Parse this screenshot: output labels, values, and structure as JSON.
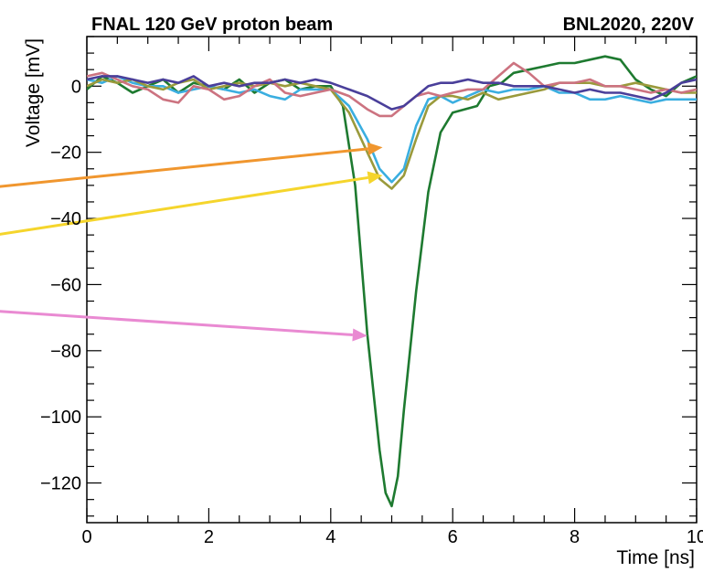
{
  "chart_data": {
    "type": "line",
    "title_left": "FNAL 120 GeV proton beam",
    "title_right": "BNL2020, 220V",
    "xlabel": "Time [ns]",
    "ylabel": "Voltage [mV]",
    "xlim": [
      0,
      10
    ],
    "ylim": [
      -132,
      15
    ],
    "xticks": [
      0,
      2,
      4,
      6,
      8,
      10
    ],
    "xtick_labels": [
      "0",
      "2",
      "4",
      "6",
      "8",
      "10"
    ],
    "yticks": [
      0,
      -20,
      -40,
      -60,
      -80,
      -100,
      -120
    ],
    "ytick_labels": [
      "0",
      "−20",
      "−40",
      "−60",
      "−80",
      "−100",
      "−120"
    ],
    "grid": false,
    "series": [
      {
        "color": "#1e7a30",
        "x": [
          0,
          0.25,
          0.5,
          0.75,
          1,
          1.25,
          1.5,
          1.75,
          2,
          2.25,
          2.5,
          2.75,
          3,
          3.25,
          3.5,
          3.75,
          4,
          4.2,
          4.4,
          4.6,
          4.8,
          4.9,
          5.0,
          5.1,
          5.2,
          5.4,
          5.6,
          5.8,
          6.0,
          6.2,
          6.4,
          6.6,
          6.8,
          7.0,
          7.25,
          7.5,
          7.75,
          8,
          8.25,
          8.5,
          8.75,
          9,
          9.25,
          9.5,
          9.75,
          10
        ],
        "y": [
          -1,
          3,
          1,
          -2,
          0,
          2,
          -2,
          1,
          0,
          -1,
          2,
          -2,
          1,
          2,
          -1,
          0,
          0,
          -6,
          -30,
          -75,
          -110,
          -123,
          -127,
          -118,
          -98,
          -62,
          -32,
          -14,
          -8,
          -7,
          -6,
          0,
          1,
          4,
          5,
          6,
          7,
          7,
          8,
          9,
          8,
          2,
          -1,
          -3,
          1,
          3
        ]
      },
      {
        "color": "#3aaee0",
        "x": [
          0,
          0.25,
          0.5,
          0.75,
          1,
          1.25,
          1.5,
          1.75,
          2,
          2.25,
          2.5,
          2.75,
          3,
          3.25,
          3.5,
          3.75,
          4,
          4.3,
          4.6,
          4.8,
          5.0,
          5.2,
          5.4,
          5.6,
          5.8,
          6.0,
          6.25,
          6.5,
          6.75,
          7,
          7.25,
          7.5,
          7.75,
          8,
          8.25,
          8.5,
          8.75,
          9,
          9.25,
          9.5,
          9.75,
          10
        ],
        "y": [
          2,
          1,
          3,
          1,
          0,
          0,
          -2,
          -1,
          0,
          -1,
          -2,
          -1,
          -3,
          -4,
          -1,
          -1,
          -1,
          -6,
          -16,
          -25,
          -29,
          -25,
          -12,
          -4,
          -3,
          -5,
          -3,
          -1,
          -2,
          -1,
          -1,
          0,
          -2,
          -2,
          -4,
          -4,
          -3,
          -4,
          -5,
          -4,
          -4,
          -4
        ]
      },
      {
        "color": "#9a9a3c",
        "x": [
          0,
          0.25,
          0.5,
          0.75,
          1,
          1.25,
          1.5,
          1.75,
          2,
          2.25,
          2.5,
          2.75,
          3,
          3.25,
          3.5,
          3.75,
          4,
          4.3,
          4.6,
          4.8,
          5.0,
          5.2,
          5.4,
          5.6,
          5.8,
          6.0,
          6.25,
          6.5,
          6.75,
          7,
          7.25,
          7.5,
          7.75,
          8,
          8.25,
          8.5,
          8.75,
          9,
          9.25,
          9.5,
          9.75,
          10
        ],
        "y": [
          0,
          2,
          1,
          2,
          0,
          -1,
          1,
          2,
          -1,
          0,
          1,
          0,
          1,
          0,
          1,
          0,
          -1,
          -8,
          -20,
          -28,
          -31,
          -27,
          -16,
          -6,
          -3,
          -3,
          -4,
          -2,
          -4,
          -3,
          -2,
          -1,
          1,
          1,
          1,
          0,
          0,
          1,
          0,
          -1,
          -2,
          -2
        ]
      },
      {
        "color": "#cc7380",
        "x": [
          0,
          0.25,
          0.5,
          0.75,
          1,
          1.25,
          1.5,
          1.75,
          2,
          2.25,
          2.5,
          2.75,
          3,
          3.25,
          3.5,
          3.75,
          4,
          4.3,
          4.6,
          4.8,
          5.0,
          5.2,
          5.4,
          5.6,
          5.8,
          6.0,
          6.25,
          6.5,
          6.75,
          7,
          7.25,
          7.5,
          7.75,
          8,
          8.25,
          8.5,
          8.75,
          9,
          9.25,
          9.5,
          9.75,
          10
        ],
        "y": [
          3,
          4,
          2,
          0,
          -1,
          -4,
          -5,
          0,
          -1,
          -4,
          -3,
          0,
          2,
          -2,
          -3,
          -2,
          -1,
          -3,
          -7,
          -9,
          -9,
          -6,
          -3,
          -2,
          -3,
          -2,
          -1,
          -1,
          3,
          7,
          4,
          0,
          1,
          1,
          2,
          0,
          0,
          -1,
          -2,
          -1,
          -2,
          -1
        ]
      },
      {
        "color": "#4a3f9a",
        "x": [
          0,
          0.25,
          0.5,
          0.75,
          1,
          1.25,
          1.5,
          1.75,
          2,
          2.25,
          2.5,
          2.75,
          3,
          3.25,
          3.5,
          3.75,
          4,
          4.3,
          4.6,
          4.8,
          5.0,
          5.2,
          5.4,
          5.6,
          5.8,
          6.0,
          6.25,
          6.5,
          6.75,
          7,
          7.25,
          7.5,
          7.75,
          8,
          8.25,
          8.5,
          8.75,
          9,
          9.25,
          9.5,
          9.75,
          10
        ],
        "y": [
          2,
          3,
          3,
          2,
          1,
          2,
          1,
          3,
          0,
          1,
          0,
          1,
          1,
          2,
          1,
          2,
          1,
          -1,
          -3,
          -5,
          -7,
          -6,
          -3,
          0,
          1,
          1,
          2,
          1,
          1,
          0,
          0,
          0,
          -1,
          -2,
          -1,
          -2,
          -2,
          -3,
          -4,
          -2,
          1,
          2
        ]
      }
    ],
    "annotations": [
      {
        "type": "arrow",
        "color": "#f0962e",
        "from": [
          -1.5,
          -30.5
        ],
        "to": [
          4.85,
          -18.5
        ]
      },
      {
        "type": "arrow",
        "color": "#f5d52c",
        "from": [
          -1.5,
          -45
        ],
        "to": [
          4.85,
          -27
        ]
      },
      {
        "type": "arrow",
        "color": "#e98ad2",
        "from": [
          -1.5,
          -68
        ],
        "to": [
          4.6,
          -75.5
        ]
      }
    ]
  }
}
